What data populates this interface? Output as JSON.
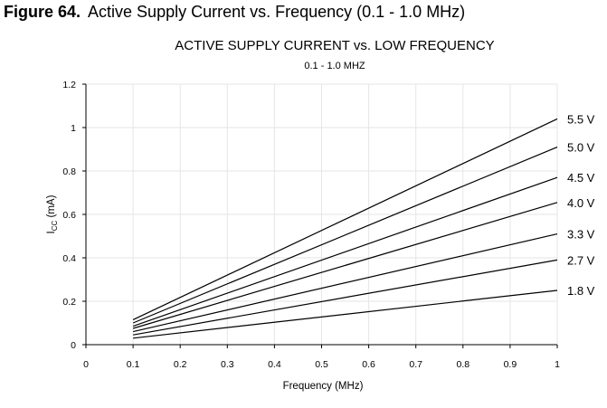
{
  "figure": {
    "number": "Figure 64.",
    "caption": "Active Supply Current vs. Frequency (0.1 - 1.0 MHz)"
  },
  "chart_data": {
    "type": "line",
    "title": "ACTIVE SUPPLY CURRENT vs. LOW FREQUENCY",
    "subtitle": "0.1 - 1.0 MHZ",
    "xlabel": "Frequency (MHz)",
    "ylabel_main": "I",
    "ylabel_sub": "CC",
    "ylabel_rest": " (mA)",
    "xlim": [
      0,
      1
    ],
    "ylim": [
      0,
      1.2
    ],
    "x_ticks": [
      "0",
      "0.1",
      "0.2",
      "0.3",
      "0.4",
      "0.5",
      "0.6",
      "0.7",
      "0.8",
      "0.9",
      "1"
    ],
    "y_ticks": [
      "0",
      "0.2",
      "0.4",
      "0.6",
      "0.8",
      "1",
      "1.2"
    ],
    "grid": true,
    "x": [
      0.1,
      1.0
    ],
    "series": [
      {
        "name": "5.5 V",
        "values": [
          0.115,
          1.04
        ]
      },
      {
        "name": "5.0 V",
        "values": [
          0.1,
          0.91
        ]
      },
      {
        "name": "4.5 V",
        "values": [
          0.085,
          0.77
        ]
      },
      {
        "name": "4.0 V",
        "values": [
          0.075,
          0.655
        ]
      },
      {
        "name": "3.3 V",
        "values": [
          0.06,
          0.51
        ]
      },
      {
        "name": "2.7 V",
        "values": [
          0.045,
          0.39
        ]
      },
      {
        "name": "1.8 V",
        "values": [
          0.03,
          0.25
        ]
      }
    ]
  }
}
